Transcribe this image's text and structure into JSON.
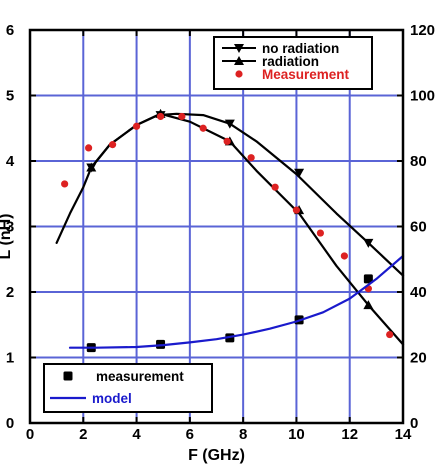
{
  "chart_data": {
    "type": "line",
    "title": "",
    "xlabel": "F (GHz)",
    "ylabel": "L (nH)",
    "xlim": [
      0,
      14
    ],
    "ylim": [
      0,
      6
    ],
    "y2lim": [
      0,
      120
    ],
    "x_ticks": [
      "0",
      "2",
      "4",
      "6",
      "8",
      "10",
      "12",
      "14"
    ],
    "y_ticks": [
      "0",
      "1",
      "2",
      "3",
      "4",
      "5",
      "6"
    ],
    "y2_ticks": [
      "0",
      "20",
      "40",
      "60",
      "80",
      "100",
      "120"
    ],
    "grid": true,
    "colors": {
      "grid": "#5a64d6",
      "axis": "#000000",
      "measurement": "#dd2222",
      "model": "#1a1acc"
    },
    "legend_top": {
      "position": "top-right",
      "entries": [
        {
          "label": "no radiation",
          "marker": "triangle-down",
          "color": "#000000"
        },
        {
          "label": "radiation",
          "marker": "triangle-up",
          "color": "#000000"
        },
        {
          "label": "Measurement",
          "marker": "circle",
          "color": "#dd2222"
        }
      ]
    },
    "legend_bottom": {
      "position": "bottom-left",
      "entries": [
        {
          "label": "measurement",
          "marker": "square",
          "color": "#000000"
        },
        {
          "label": "model",
          "marker": "line",
          "color": "#1a1acc"
        }
      ]
    },
    "series": [
      {
        "name": "no radiation",
        "axis": "left",
        "marker": "triangle-down",
        "color": "#000000",
        "x": [
          1,
          1.5,
          2,
          2.3,
          3,
          4,
          4.8,
          5.5,
          6.5,
          7.5,
          8.5,
          10,
          11.5,
          12.7,
          14
        ],
        "y": [
          2.75,
          3.2,
          3.6,
          3.9,
          4.25,
          4.55,
          4.7,
          4.72,
          4.7,
          4.57,
          4.3,
          3.8,
          3.2,
          2.75,
          2.25
        ],
        "marker_x": [
          2.3,
          4.9,
          7.5,
          10.1,
          12.7
        ],
        "marker_y": [
          3.9,
          4.7,
          4.57,
          3.82,
          2.75
        ]
      },
      {
        "name": "radiation",
        "axis": "left",
        "marker": "triangle-up",
        "color": "#000000",
        "x": [
          2.3,
          3,
          4,
          4.9,
          6,
          7.5,
          8.5,
          10.1,
          11.5,
          12.7,
          14
        ],
        "y": [
          3.9,
          4.25,
          4.55,
          4.72,
          4.6,
          4.3,
          3.85,
          3.2,
          2.4,
          1.8,
          1.2
        ],
        "marker_x": [
          2.3,
          4.9,
          7.5,
          10.1,
          12.7
        ],
        "marker_y": [
          3.9,
          4.72,
          4.3,
          3.25,
          1.8
        ]
      },
      {
        "name": "Measurement",
        "axis": "left",
        "marker": "circle",
        "color": "#dd2222",
        "x": [
          1.3,
          2.2,
          3.1,
          4,
          4.9,
          5.7,
          6.5,
          7.4,
          8.3,
          9.2,
          10,
          10.9,
          11.8,
          12.7,
          13.5
        ],
        "y": [
          3.65,
          4.2,
          4.25,
          4.53,
          4.68,
          4.68,
          4.5,
          4.3,
          4.05,
          3.6,
          3.25,
          2.9,
          2.55,
          2.05,
          1.35
        ]
      },
      {
        "name": "measurement",
        "axis": "right",
        "marker": "square",
        "color": "#000000",
        "x": [
          2.3,
          4.9,
          7.5,
          10.1,
          12.7
        ],
        "y": [
          23,
          24,
          26,
          31.5,
          44
        ]
      },
      {
        "name": "model",
        "axis": "right",
        "marker": "none",
        "color": "#1a1acc",
        "x": [
          1.5,
          2.5,
          4,
          5,
          6,
          7,
          8,
          9,
          10,
          11,
          12,
          13,
          14
        ],
        "y": [
          23,
          23,
          23.2,
          23.8,
          24.6,
          25.6,
          27,
          28.8,
          31,
          33.8,
          38,
          44,
          51
        ]
      }
    ]
  }
}
